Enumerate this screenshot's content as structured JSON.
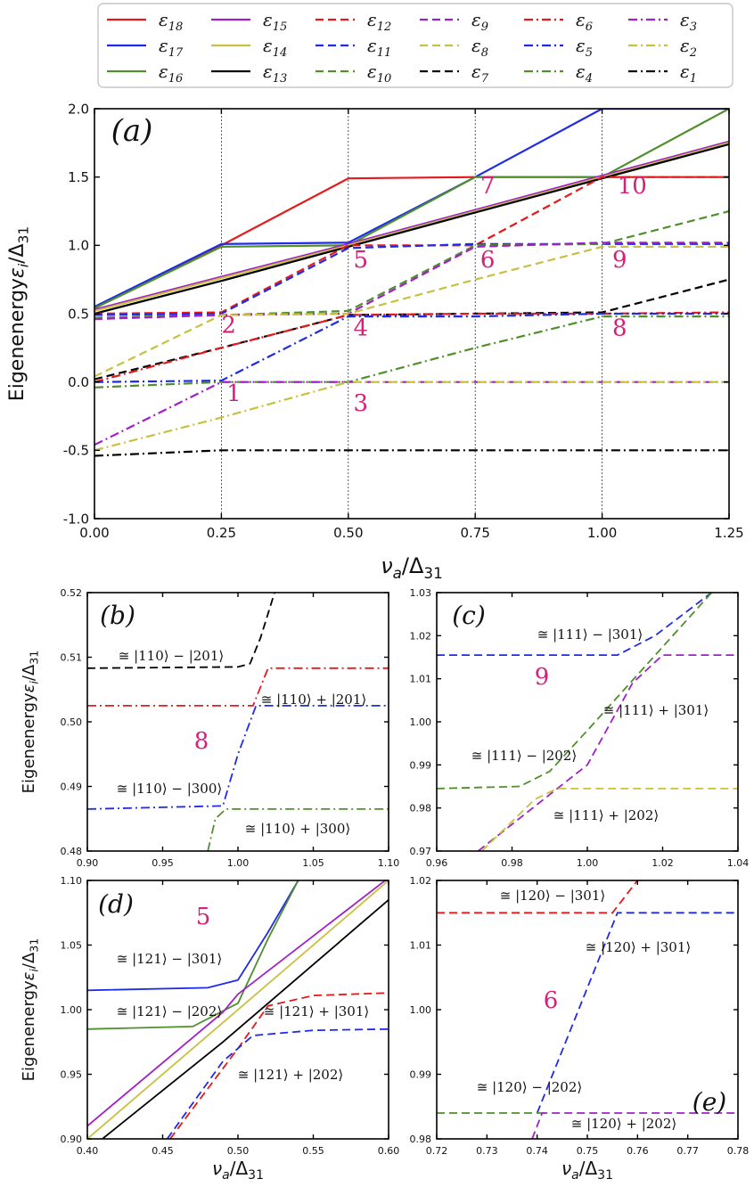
{
  "colors": {
    "e18": "#e41a1c",
    "e17": "#1f2be8",
    "e16": "#4f8f2c",
    "e15": "#a020c8",
    "e14": "#c8c040",
    "e13": "#000000",
    "e12": "#e41a1c",
    "e11": "#1f2be8",
    "e10": "#4f8f2c",
    "e9": "#a020c8",
    "e8": "#c8c040",
    "e7": "#000000",
    "e6": "#e41a1c",
    "e5": "#1f2be8",
    "e4": "#4f8f2c",
    "e3": "#a020c8",
    "e2": "#c8c040",
    "e1": "#000000",
    "number": "#d6207a"
  },
  "chart_data": [
    {
      "panel": "(a)",
      "type": "line",
      "xlabel": "ν_a/Δ31",
      "ylabel": "Eigenenergy ε_i/Δ31",
      "xlim": [
        0.0,
        1.25
      ],
      "ylim": [
        -1.0,
        2.0
      ],
      "xticks": [
        "0.00",
        "0.25",
        "0.50",
        "0.75",
        "1.00",
        "1.25"
      ],
      "yticks": [
        "-1.0",
        "-0.5",
        "0.0",
        "0.5",
        "1.0",
        "1.5",
        "2.0"
      ],
      "vlines": [
        0.25,
        0.5,
        0.75,
        1.0
      ],
      "legend": [
        "ε18",
        "ε17",
        "ε16",
        "ε15",
        "ε14",
        "ε13",
        "ε12",
        "ε11",
        "ε10",
        "ε9",
        "ε8",
        "ε7",
        "ε6",
        "ε5",
        "ε4",
        "ε3",
        "ε2",
        "ε1"
      ],
      "annotations": [
        {
          "text": "1",
          "x": 0.26,
          "y": -0.14
        },
        {
          "text": "2",
          "x": 0.25,
          "y": 0.36
        },
        {
          "text": "3",
          "x": 0.51,
          "y": -0.21
        },
        {
          "text": "4",
          "x": 0.51,
          "y": 0.34
        },
        {
          "text": "5",
          "x": 0.51,
          "y": 0.84
        },
        {
          "text": "6",
          "x": 0.76,
          "y": 0.84
        },
        {
          "text": "7",
          "x": 0.76,
          "y": 1.38
        },
        {
          "text": "8",
          "x": 1.02,
          "y": 0.34
        },
        {
          "text": "9",
          "x": 1.02,
          "y": 0.84
        },
        {
          "text": "10",
          "x": 1.03,
          "y": 1.38
        }
      ],
      "series": [
        {
          "name": "ε18",
          "key": "e18",
          "style": "solid",
          "x": [
            0,
            0.25,
            0.5,
            0.75,
            1.0,
            1.25
          ],
          "y": [
            0.55,
            1.0,
            1.49,
            1.5,
            1.5,
            1.5
          ]
        },
        {
          "name": "ε17",
          "key": "e17",
          "style": "solid",
          "x": [
            0,
            0.25,
            0.5,
            0.75,
            1.0,
            1.25
          ],
          "y": [
            0.55,
            1.01,
            1.02,
            1.5,
            2.0,
            2.0
          ]
        },
        {
          "name": "ε16",
          "key": "e16",
          "style": "solid",
          "x": [
            0,
            0.25,
            0.5,
            0.75,
            1.0,
            1.25
          ],
          "y": [
            0.54,
            0.99,
            1.0,
            1.5,
            1.5,
            2.0
          ]
        },
        {
          "name": "ε15",
          "key": "e15",
          "style": "solid",
          "x": [
            0,
            0.25,
            0.5,
            0.75,
            1.0,
            1.25
          ],
          "y": [
            0.53,
            0.77,
            1.01,
            1.26,
            1.51,
            1.76
          ]
        },
        {
          "name": "ε14",
          "key": "e14",
          "style": "solid",
          "x": [
            0,
            0.25,
            0.5,
            0.75,
            1.0,
            1.25
          ],
          "y": [
            0.52,
            0.76,
            1.0,
            1.25,
            1.5,
            1.75
          ]
        },
        {
          "name": "ε13",
          "key": "e13",
          "style": "solid",
          "x": [
            0,
            0.25,
            0.5,
            0.75,
            1.0,
            1.25
          ],
          "y": [
            0.5,
            0.74,
            0.99,
            1.24,
            1.49,
            1.74
          ]
        },
        {
          "name": "ε12",
          "key": "e12",
          "style": "dashed",
          "x": [
            0,
            0.25,
            0.5,
            0.75,
            1.0,
            1.25
          ],
          "y": [
            0.5,
            0.51,
            1.0,
            1.0,
            1.5,
            1.5
          ]
        },
        {
          "name": "ε11",
          "key": "e11",
          "style": "dashed",
          "x": [
            0,
            0.25,
            0.5,
            0.75,
            1.0,
            1.25
          ],
          "y": [
            0.49,
            0.5,
            0.98,
            1.01,
            1.01,
            1.01
          ]
        },
        {
          "name": "ε10",
          "key": "e10",
          "style": "dashed",
          "x": [
            0,
            0.25,
            0.5,
            0.75,
            1.0,
            1.25
          ],
          "y": [
            0.47,
            0.49,
            0.52,
            1.0,
            1.01,
            1.25
          ]
        },
        {
          "name": "ε9",
          "key": "e9",
          "style": "dashed",
          "x": [
            0,
            0.25,
            0.5,
            0.75,
            1.0,
            1.25
          ],
          "y": [
            0.46,
            0.49,
            0.5,
            0.99,
            1.02,
            1.02
          ]
        },
        {
          "name": "ε8",
          "key": "e8",
          "style": "dashed",
          "x": [
            0,
            0.25,
            0.5,
            0.75,
            1.0,
            1.25
          ],
          "y": [
            0.04,
            0.49,
            0.5,
            0.75,
            0.99,
            0.99
          ]
        },
        {
          "name": "ε7",
          "key": "e7",
          "style": "dashed",
          "x": [
            0,
            0.25,
            0.5,
            0.75,
            1.0,
            1.25
          ],
          "y": [
            0.02,
            0.25,
            0.49,
            0.5,
            0.51,
            0.75
          ]
        },
        {
          "name": "ε6",
          "key": "e6",
          "style": "dashdot",
          "x": [
            0,
            0.25,
            0.5,
            0.75,
            1.0,
            1.25
          ],
          "y": [
            0.0,
            0.25,
            0.49,
            0.5,
            0.5,
            0.51
          ]
        },
        {
          "name": "ε5",
          "key": "e5",
          "style": "dashdot",
          "x": [
            0,
            0.25,
            0.5,
            0.75,
            1.0,
            1.25
          ],
          "y": [
            0.0,
            0.01,
            0.48,
            0.48,
            0.5,
            0.5
          ]
        },
        {
          "name": "ε4",
          "key": "e4",
          "style": "dashdot",
          "x": [
            0,
            0.25,
            0.5,
            0.75,
            1.0,
            1.25
          ],
          "y": [
            -0.04,
            0.0,
            0.0,
            0.25,
            0.48,
            0.48
          ]
        },
        {
          "name": "ε3",
          "key": "e3",
          "style": "dashdot",
          "x": [
            0,
            0.25,
            0.5,
            0.75,
            1.0,
            1.25
          ],
          "y": [
            -0.46,
            0.0,
            0.0,
            0.0,
            0.0,
            0.0
          ]
        },
        {
          "name": "ε2",
          "key": "e2",
          "style": "dashdot",
          "x": [
            0,
            0.25,
            0.5,
            0.75,
            1.0,
            1.25
          ],
          "y": [
            -0.5,
            -0.26,
            0.0,
            0.0,
            0.0,
            0.0
          ]
        },
        {
          "name": "ε1",
          "key": "e1",
          "style": "dashdot",
          "x": [
            0,
            0.25,
            0.5,
            0.75,
            1.0,
            1.25
          ],
          "y": [
            -0.54,
            -0.5,
            -0.5,
            -0.5,
            -0.5,
            -0.5
          ]
        }
      ]
    },
    {
      "panel": "(b)",
      "type": "line",
      "xlim": [
        0.9,
        1.1
      ],
      "ylim": [
        0.48,
        0.52
      ],
      "xticks": [
        "0.90",
        "0.95",
        "1.00",
        "1.05",
        "1.10"
      ],
      "yticks": [
        "0.48",
        "0.49",
        "0.50",
        "0.51",
        "0.52"
      ],
      "center_label": "8",
      "annotations": [
        "≅ |110⟩ − |201⟩",
        "≅ |110⟩ + |201⟩",
        "≅ |110⟩ − |300⟩",
        "≅ |110⟩ + |300⟩"
      ],
      "series": [
        {
          "name": "ε7",
          "key": "e7",
          "style": "dashed",
          "x": [
            0.9,
            1.0,
            1.008,
            1.015,
            1.025
          ],
          "y": [
            0.5083,
            0.5085,
            0.509,
            0.513,
            0.5205
          ]
        },
        {
          "name": "ε6",
          "key": "e6",
          "style": "dashdot",
          "x": [
            0.9,
            1.0,
            1.01,
            1.02,
            1.1
          ],
          "y": [
            0.5025,
            0.5025,
            0.5025,
            0.5083,
            0.5083
          ]
        },
        {
          "name": "ε5",
          "key": "e5",
          "style": "dashdot",
          "x": [
            0.9,
            0.99,
            1.0,
            1.012,
            1.1
          ],
          "y": [
            0.4865,
            0.487,
            0.495,
            0.5025,
            0.5025
          ]
        },
        {
          "name": "ε4",
          "key": "e4",
          "style": "dashdot",
          "x": [
            0.98,
            0.985,
            0.992,
            1.1
          ],
          "y": [
            0.48,
            0.485,
            0.4865,
            0.4865
          ]
        }
      ]
    },
    {
      "panel": "(c)",
      "type": "line",
      "xlim": [
        0.96,
        1.04
      ],
      "ylim": [
        0.97,
        1.03
      ],
      "xticks": [
        "0.96",
        "0.98",
        "1.00",
        "1.02",
        "1.04"
      ],
      "yticks": [
        "0.97",
        "0.98",
        "0.99",
        "1.00",
        "1.01",
        "1.02",
        "1.03"
      ],
      "center_label": "9",
      "annotations": [
        "≅ |111⟩ − |301⟩",
        "≅ |111⟩ + |301⟩",
        "≅ |111⟩ − |202⟩",
        "≅ |111⟩ + |202⟩"
      ],
      "series": [
        {
          "name": "ε11",
          "key": "e11",
          "style": "dashed",
          "x": [
            0.96,
            1.008,
            1.018,
            1.033
          ],
          "y": [
            1.0155,
            1.0155,
            1.02,
            1.03
          ]
        },
        {
          "name": "ε9",
          "key": "e9",
          "style": "dashed",
          "x": [
            0.971,
            1.0,
            1.012,
            1.02,
            1.04
          ],
          "y": [
            0.97,
            0.99,
            1.009,
            1.0155,
            1.0155
          ]
        },
        {
          "name": "ε10",
          "key": "e10",
          "style": "dashed",
          "x": [
            0.96,
            0.982,
            0.99,
            1.0,
            1.033
          ],
          "y": [
            0.9845,
            0.985,
            0.9885,
            0.998,
            1.03
          ]
        },
        {
          "name": "ε8",
          "key": "e8",
          "style": "dashed",
          "x": [
            0.972,
            0.986,
            0.992,
            1.04
          ],
          "y": [
            0.97,
            0.982,
            0.9845,
            0.9845
          ]
        }
      ]
    },
    {
      "panel": "(d)",
      "type": "line",
      "xlim": [
        0.4,
        0.6
      ],
      "ylim": [
        0.9,
        1.1
      ],
      "xticks": [
        "0.40",
        "0.45",
        "0.50",
        "0.55",
        "0.60"
      ],
      "yticks": [
        "0.90",
        "0.95",
        "1.00",
        "1.05",
        "1.10"
      ],
      "center_label": "5",
      "annotations": [
        "≅ |121⟩ − |301⟩",
        "≅ |121⟩ − |202⟩",
        "≅ |121⟩ + |301⟩",
        "≅ |121⟩ + |202⟩"
      ],
      "series": [
        {
          "name": "ε17",
          "key": "e17",
          "style": "solid",
          "x": [
            0.4,
            0.48,
            0.5,
            0.52,
            0.54
          ],
          "y": [
            1.015,
            1.017,
            1.023,
            1.06,
            1.1
          ]
        },
        {
          "name": "ε16",
          "key": "e16",
          "style": "solid",
          "x": [
            0.4,
            0.47,
            0.5,
            0.52,
            0.54
          ],
          "y": [
            0.985,
            0.987,
            1.005,
            1.055,
            1.1
          ]
        },
        {
          "name": "ε15",
          "key": "e15",
          "style": "solid",
          "x": [
            0.4,
            0.49,
            0.5,
            0.6
          ],
          "y": [
            0.91,
            0.998,
            1.012,
            1.102
          ]
        },
        {
          "name": "ε14",
          "key": "e14",
          "style": "solid",
          "x": [
            0.4,
            0.6
          ],
          "y": [
            0.9,
            1.1
          ]
        },
        {
          "name": "ε13",
          "key": "e13",
          "style": "solid",
          "x": [
            0.41,
            0.49,
            0.5,
            0.51,
            0.6
          ],
          "y": [
            0.9,
            0.975,
            0.985,
            0.995,
            1.085
          ]
        },
        {
          "name": "ε12",
          "key": "e12",
          "style": "dashed",
          "x": [
            0.455,
            0.5,
            0.52,
            0.55,
            0.6
          ],
          "y": [
            0.9,
            0.97,
            1.003,
            1.011,
            1.013
          ]
        },
        {
          "name": "ε11",
          "key": "e11",
          "style": "dashed",
          "x": [
            0.453,
            0.49,
            0.51,
            0.55,
            0.6
          ],
          "y": [
            0.9,
            0.96,
            0.98,
            0.984,
            0.985
          ]
        }
      ]
    },
    {
      "panel": "(e)",
      "type": "line",
      "xlim": [
        0.72,
        0.78
      ],
      "ylim": [
        0.98,
        1.02
      ],
      "xticks": [
        "0.72",
        "0.73",
        "0.74",
        "0.75",
        "0.76",
        "0.77",
        "0.78"
      ],
      "yticks": [
        "0.98",
        "0.99",
        "1.00",
        "1.01",
        "1.02"
      ],
      "center_label": "6",
      "annotations": [
        "≅ |120⟩ − |301⟩",
        "≅ |120⟩ + |301⟩",
        "≅ |120⟩ − |202⟩",
        "≅ |120⟩ + |202⟩"
      ],
      "series": [
        {
          "name": "ε12",
          "key": "e12",
          "style": "dashed",
          "x": [
            0.72,
            0.755,
            0.76
          ],
          "y": [
            1.015,
            1.015,
            1.02
          ]
        },
        {
          "name": "ε11",
          "key": "e11",
          "style": "dashed",
          "x": [
            0.74,
            0.756,
            0.78
          ],
          "y": [
            0.984,
            1.015,
            1.015
          ]
        },
        {
          "name": "ε10",
          "key": "e10",
          "style": "dashed",
          "x": [
            0.72,
            0.742
          ],
          "y": [
            0.984,
            0.984
          ]
        },
        {
          "name": "ε9",
          "key": "e9",
          "style": "dashed",
          "x": [
            0.739,
            0.741,
            0.78
          ],
          "y": [
            0.98,
            0.984,
            0.984
          ]
        }
      ]
    }
  ]
}
